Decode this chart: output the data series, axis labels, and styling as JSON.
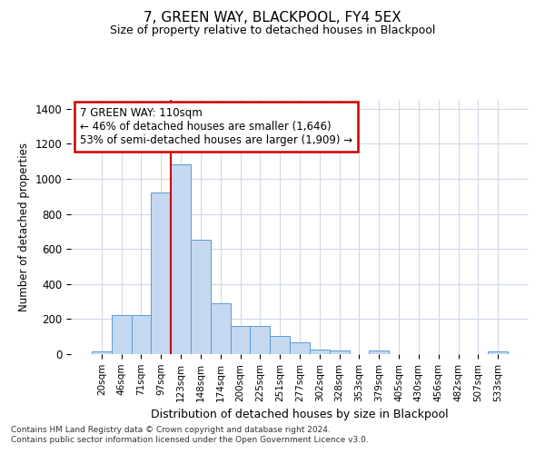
{
  "title": "7, GREEN WAY, BLACKPOOL, FY4 5EX",
  "subtitle": "Size of property relative to detached houses in Blackpool",
  "xlabel": "Distribution of detached houses by size in Blackpool",
  "ylabel": "Number of detached properties",
  "categories": [
    "20sqm",
    "46sqm",
    "71sqm",
    "97sqm",
    "123sqm",
    "148sqm",
    "174sqm",
    "200sqm",
    "225sqm",
    "251sqm",
    "277sqm",
    "302sqm",
    "328sqm",
    "353sqm",
    "379sqm",
    "405sqm",
    "430sqm",
    "456sqm",
    "482sqm",
    "507sqm",
    "533sqm"
  ],
  "values": [
    15,
    225,
    225,
    920,
    1080,
    650,
    290,
    160,
    160,
    105,
    68,
    25,
    20,
    0,
    20,
    0,
    0,
    0,
    0,
    0,
    15
  ],
  "bar_color": "#c5d8f0",
  "bar_edge_color": "#5b9bd5",
  "bar_width": 1.0,
  "grid_color": "#d0d8e8",
  "background_color": "#ffffff",
  "annotation_text": "7 GREEN WAY: 110sqm\n← 46% of detached houses are smaller (1,646)\n53% of semi-detached houses are larger (1,909) →",
  "annotation_box_color": "#ffffff",
  "annotation_box_edge_color": "#cc0000",
  "red_line_x": 3.5,
  "ylim": [
    0,
    1450
  ],
  "yticks": [
    0,
    200,
    400,
    600,
    800,
    1000,
    1200,
    1400
  ],
  "footnote1": "Contains HM Land Registry data © Crown copyright and database right 2024.",
  "footnote2": "Contains public sector information licensed under the Open Government Licence v3.0."
}
